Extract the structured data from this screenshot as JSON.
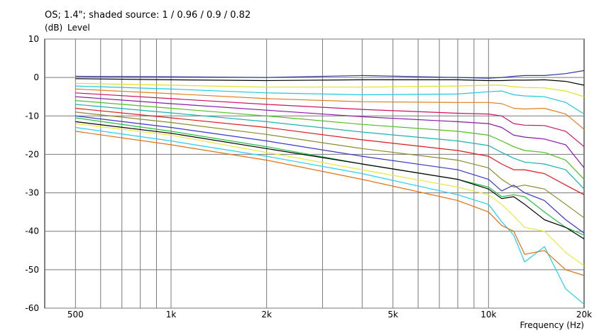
{
  "chart_data": {
    "type": "line",
    "title": "OS; 1.4\"; shaded source: 1 / 0.96 / 0.9 / 0.82",
    "ylabel_unit": "(dB)",
    "ylabel": "Level",
    "xlabel": "Frequency  (Hz)",
    "x_scale": "log",
    "xlim": [
      400,
      20000
    ],
    "ylim": [
      -60,
      10
    ],
    "y_ticks": [
      10,
      0,
      -10,
      -20,
      -30,
      -40,
      -50,
      -60
    ],
    "x_tick_labels": [
      {
        "value": 500,
        "label": "500"
      },
      {
        "value": 1000,
        "label": "1k"
      },
      {
        "value": 2000,
        "label": "2k"
      },
      {
        "value": 5000,
        "label": "5k"
      },
      {
        "value": 10000,
        "label": "10k"
      },
      {
        "value": 20000,
        "label": "20k"
      }
    ],
    "x_minor_grid": [
      500,
      600,
      700,
      800,
      900,
      1000,
      2000,
      3000,
      4000,
      5000,
      6000,
      7000,
      8000,
      9000,
      10000
    ],
    "grid": true,
    "x": [
      500,
      1000,
      2000,
      4000,
      8000,
      10000,
      11000,
      12000,
      13000,
      15000,
      17500,
      20000
    ],
    "series": [
      {
        "color": "#2b3a9a",
        "values": [
          0.3,
          0.2,
          0.0,
          0.5,
          0.0,
          -0.2,
          0.0,
          0.3,
          0.5,
          0.5,
          1.0,
          1.8
        ]
      },
      {
        "color": "#000000",
        "values": [
          -0.3,
          -0.6,
          -0.8,
          -0.6,
          -0.6,
          -0.8,
          -0.8,
          -0.7,
          -0.7,
          -0.6,
          -1.0,
          -2.0
        ]
      },
      {
        "color": "#e0e020",
        "values": [
          -1.5,
          -2.0,
          -2.5,
          -2.5,
          -2.2,
          -2.0,
          -2.0,
          -2.4,
          -2.6,
          -2.7,
          -3.5,
          -5.0
        ]
      },
      {
        "color": "#1ec8e0",
        "values": [
          -2.2,
          -3.0,
          -4.0,
          -4.5,
          -4.3,
          -3.7,
          -3.5,
          -4.5,
          -4.8,
          -5.0,
          -6.5,
          -9.5
        ]
      },
      {
        "color": "#e08020",
        "values": [
          -3.0,
          -4.2,
          -5.5,
          -6.3,
          -6.5,
          -6.5,
          -6.8,
          -8.0,
          -8.2,
          -8.0,
          -9.5,
          -13.5
        ]
      },
      {
        "color": "#cc1560",
        "values": [
          -4.0,
          -5.5,
          -7.0,
          -8.3,
          -9.3,
          -9.5,
          -10.0,
          -12.0,
          -12.4,
          -12.5,
          -14.0,
          -18.0
        ]
      },
      {
        "color": "#8818a8",
        "values": [
          -5.0,
          -6.8,
          -8.5,
          -10.2,
          -11.5,
          -12.0,
          -13.0,
          -15.0,
          -15.5,
          -16.0,
          -17.5,
          -23.5
        ]
      },
      {
        "color": "#50c020",
        "values": [
          -6.0,
          -8.0,
          -10.0,
          -12.2,
          -14.0,
          -15.0,
          -16.5,
          -18.0,
          -19.0,
          -19.5,
          -21.5,
          -26.5
        ]
      },
      {
        "color": "#1bb2b2",
        "values": [
          -7.0,
          -9.2,
          -11.5,
          -14.2,
          -16.5,
          -17.7,
          -19.5,
          -21.0,
          -22.0,
          -22.5,
          -24.0,
          -29.0
        ]
      },
      {
        "color": "#e01a1a",
        "values": [
          -8.0,
          -10.5,
          -13.0,
          -16.2,
          -19.0,
          -20.5,
          -22.5,
          -24.0,
          -24.0,
          -25.0,
          -28.0,
          -30.5
        ]
      },
      {
        "color": "#8a8a30",
        "values": [
          -9.0,
          -11.7,
          -14.8,
          -18.5,
          -21.5,
          -23.5,
          -26.5,
          -28.5,
          -28.0,
          -29.0,
          -33.0,
          -36.5
        ]
      },
      {
        "color": "#3838c8",
        "values": [
          -10.0,
          -13.0,
          -16.5,
          -20.5,
          -24.0,
          -26.5,
          -29.5,
          -28.0,
          -30.0,
          -32.0,
          -37.0,
          -40.5
        ]
      },
      {
        "color": "#20c040",
        "values": [
          -10.5,
          -14.0,
          -18.0,
          -22.5,
          -26.5,
          -28.5,
          -31.0,
          -30.5,
          -31.0,
          -35.0,
          -39.0,
          -41.0
        ]
      },
      {
        "color": "#000000",
        "values": [
          -11.5,
          -14.5,
          -18.5,
          -22.5,
          -26.5,
          -29.0,
          -31.5,
          -31.0,
          -33.0,
          -37.0,
          -39.0,
          -42.0
        ]
      },
      {
        "color": "#e8e840",
        "values": [
          -12.0,
          -15.0,
          -19.5,
          -24.0,
          -28.5,
          -30.5,
          -33.0,
          -36.0,
          -39.0,
          -40.0,
          -45.5,
          -49.0
        ]
      },
      {
        "color": "#20d0f0",
        "values": [
          -13.0,
          -16.5,
          -20.5,
          -25.0,
          -30.5,
          -33.0,
          -37.5,
          -41.0,
          -48.0,
          -44.0,
          -55.0,
          -59.0
        ]
      },
      {
        "color": "#e07010",
        "values": [
          -14.0,
          -17.5,
          -21.5,
          -26.5,
          -32.0,
          -35.0,
          -38.5,
          -40.0,
          -46.0,
          -45.0,
          -50.0,
          -51.5
        ]
      }
    ]
  }
}
